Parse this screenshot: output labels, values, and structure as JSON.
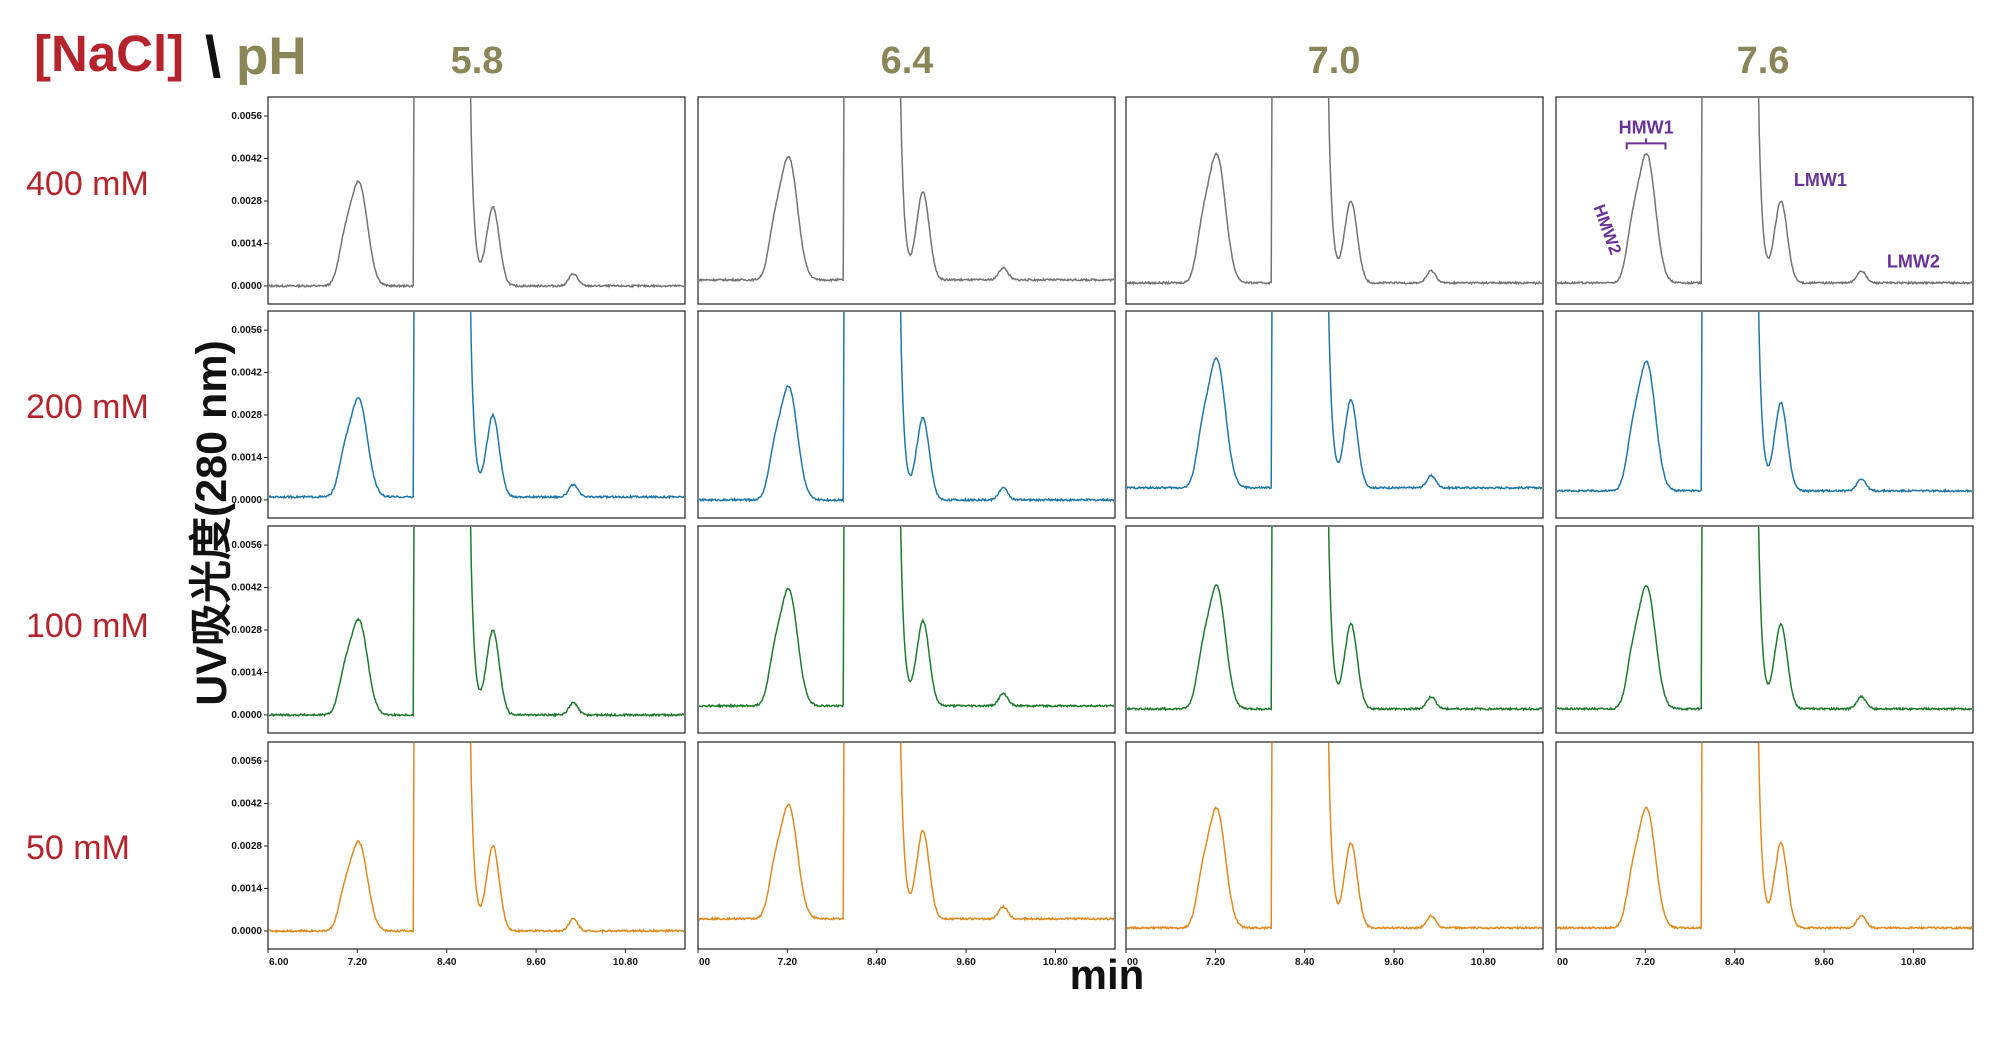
{
  "header": {
    "nacl_label": "[NaCl]",
    "separator": "\\",
    "ph_label": "pH"
  },
  "columns": [
    "5.8",
    "6.4",
    "7.0",
    "7.6"
  ],
  "rows": [
    "400 mM",
    "200 mM",
    "100 mM",
    "50 mM"
  ],
  "colors": {
    "accent_red": "#b5242c",
    "ph_olive": "#8a8658",
    "annotation_purple": "#6a3296",
    "series": [
      "#737373",
      "#1f77a8",
      "#1e7a2e",
      "#e08a20"
    ]
  },
  "chart_data": {
    "type": "line",
    "ylabel": "UV吸光度(280 nm)",
    "xlabel": "min",
    "xlim": [
      6.0,
      11.6
    ],
    "ylim": [
      -0.0002,
      0.0058
    ],
    "y_ticks": [
      "0.0000",
      "0.0014",
      "0.0028",
      "0.0042",
      "0.0056"
    ],
    "x_ticks_first_column": [
      "6.00",
      "7.20",
      "8.40",
      "9.60",
      "10.80"
    ],
    "x_ticks_other_columns": [
      "00",
      "7.20",
      "8.40",
      "9.60",
      "10.80"
    ],
    "annotations": [
      "HMW1",
      "HMW2",
      "LMW1",
      "LMW2"
    ],
    "panels": [
      {
        "row": "400 mM",
        "ph": "5.8",
        "hmw1": 0.0034,
        "lmw1": 0.0026,
        "baseline": 0.0
      },
      {
        "row": "400 mM",
        "ph": "6.4",
        "hmw1": 0.004,
        "lmw1": 0.0029,
        "baseline": 0.0002
      },
      {
        "row": "400 mM",
        "ph": "7.0",
        "hmw1": 0.0042,
        "lmw1": 0.0027,
        "baseline": 0.0001
      },
      {
        "row": "400 mM",
        "ph": "7.6",
        "hmw1": 0.0042,
        "lmw1": 0.0027,
        "baseline": 0.0001
      },
      {
        "row": "200 mM",
        "ph": "5.8",
        "hmw1": 0.0032,
        "lmw1": 0.0027,
        "baseline": 0.0001
      },
      {
        "row": "200 mM",
        "ph": "6.4",
        "hmw1": 0.0037,
        "lmw1": 0.0027,
        "baseline": 0.0
      },
      {
        "row": "200 mM",
        "ph": "7.0",
        "hmw1": 0.0042,
        "lmw1": 0.0029,
        "baseline": 0.0004
      },
      {
        "row": "200 mM",
        "ph": "7.6",
        "hmw1": 0.0042,
        "lmw1": 0.0029,
        "baseline": 0.0003
      },
      {
        "row": "100 mM",
        "ph": "5.8",
        "hmw1": 0.0031,
        "lmw1": 0.0028,
        "baseline": 0.0
      },
      {
        "row": "100 mM",
        "ph": "6.4",
        "hmw1": 0.0038,
        "lmw1": 0.0028,
        "baseline": 0.0003
      },
      {
        "row": "100 mM",
        "ph": "7.0",
        "hmw1": 0.004,
        "lmw1": 0.0028,
        "baseline": 0.0002
      },
      {
        "row": "100 mM",
        "ph": "7.6",
        "hmw1": 0.004,
        "lmw1": 0.0028,
        "baseline": 0.0002
      },
      {
        "row": "50 mM",
        "ph": "5.8",
        "hmw1": 0.0029,
        "lmw1": 0.0028,
        "baseline": 0.0
      },
      {
        "row": "50 mM",
        "ph": "6.4",
        "hmw1": 0.0037,
        "lmw1": 0.0029,
        "baseline": 0.0004
      },
      {
        "row": "50 mM",
        "ph": "7.0",
        "hmw1": 0.0039,
        "lmw1": 0.0028,
        "baseline": 0.0001
      },
      {
        "row": "50 mM",
        "ph": "7.6",
        "hmw1": 0.0039,
        "lmw1": 0.0028,
        "baseline": 0.0001
      }
    ]
  }
}
